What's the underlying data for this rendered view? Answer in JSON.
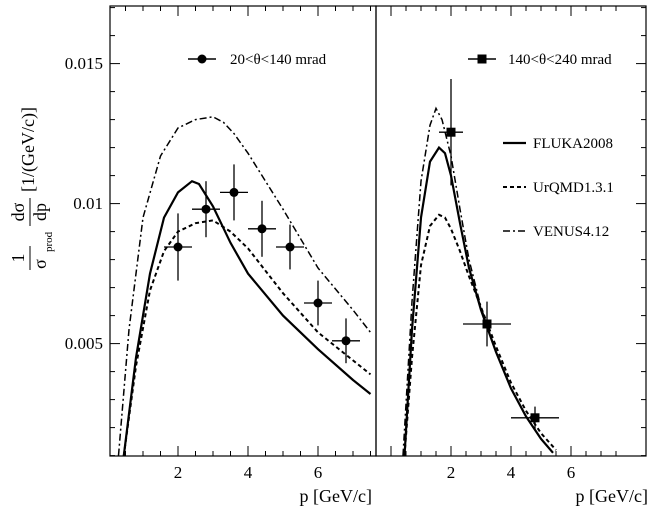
{
  "chart_data": [
    {
      "type": "line",
      "panel": "left",
      "ylabel_num": "1",
      "ylabel_den": "σ",
      "ylabel_den_sub": "prod",
      "ylabel_frac_num": "dσ",
      "ylabel_frac_den": "dp",
      "ylabel_unit": "[1/(GeV/c)]",
      "xlabel": "p [GeV/c]",
      "xlim": [
        0,
        7.5
      ],
      "ylim": [
        0.001,
        0.017
      ],
      "xticks": [
        "2",
        "4",
        "6"
      ],
      "yticks": [
        "0.005",
        "0.01",
        "0.015"
      ],
      "data_label": "20<θ<140 mrad",
      "data_marker": "circle",
      "data": [
        {
          "x": 2.0,
          "y": 0.00845,
          "ex": 0.4,
          "ey": 0.0012
        },
        {
          "x": 2.8,
          "y": 0.0098,
          "ex": 0.4,
          "ey": 0.001
        },
        {
          "x": 3.6,
          "y": 0.0104,
          "ex": 0.4,
          "ey": 0.001
        },
        {
          "x": 4.4,
          "y": 0.0091,
          "ex": 0.4,
          "ey": 0.001
        },
        {
          "x": 5.2,
          "y": 0.00845,
          "ex": 0.4,
          "ey": 0.0008
        },
        {
          "x": 6.0,
          "y": 0.00645,
          "ex": 0.4,
          "ey": 0.0008
        },
        {
          "x": 6.8,
          "y": 0.0051,
          "ex": 0.4,
          "ey": 0.0008
        }
      ],
      "series": [
        {
          "name": "FLUKA2008",
          "style": "solid",
          "x": [
            0.45,
            0.8,
            1.2,
            1.6,
            2.0,
            2.4,
            2.6,
            3.0,
            3.5,
            4.0,
            5.0,
            6.0,
            7.0,
            7.5
          ],
          "y": [
            0.001,
            0.0045,
            0.0075,
            0.0095,
            0.0104,
            0.0108,
            0.0107,
            0.0099,
            0.0086,
            0.0075,
            0.006,
            0.0048,
            0.0037,
            0.0032
          ]
        },
        {
          "name": "UrQMD1.3.1",
          "style": "dashed",
          "x": [
            0.45,
            0.8,
            1.2,
            1.6,
            2.0,
            2.5,
            3.0,
            3.5,
            4.0,
            5.0,
            6.0,
            7.0,
            7.5
          ],
          "y": [
            0.001,
            0.0042,
            0.0069,
            0.0083,
            0.009,
            0.0093,
            0.0094,
            0.009,
            0.0084,
            0.0068,
            0.0054,
            0.0044,
            0.0039
          ]
        },
        {
          "name": "VENUS4.12",
          "style": "dashdot",
          "x": [
            0.3,
            0.6,
            1.0,
            1.5,
            2.0,
            2.5,
            3.0,
            3.3,
            3.6,
            4.0,
            5.0,
            6.0,
            7.0,
            7.5
          ],
          "y": [
            0.001,
            0.0055,
            0.0095,
            0.0117,
            0.0127,
            0.013,
            0.0131,
            0.0129,
            0.0125,
            0.0118,
            0.0098,
            0.0077,
            0.0062,
            0.0054
          ]
        }
      ]
    },
    {
      "type": "line",
      "panel": "right",
      "xlabel": "p [GeV/c]",
      "xlim": [
        0,
        7.5
      ],
      "ylim": [
        0.001,
        0.017
      ],
      "xticks": [
        "2",
        "4",
        "6"
      ],
      "data_label": "140<θ<240 mrad",
      "data_marker": "square",
      "data": [
        {
          "x": 2.0,
          "y": 0.01255,
          "ex": 0.4,
          "ey": 0.0019
        },
        {
          "x": 3.2,
          "y": 0.0057,
          "ex": 0.8,
          "ey": 0.0008
        },
        {
          "x": 4.8,
          "y": 0.00235,
          "ex": 0.8,
          "ey": 0.0004
        }
      ],
      "series": [
        {
          "name": "FLUKA2008",
          "style": "solid",
          "x": [
            0.45,
            0.7,
            1.0,
            1.3,
            1.6,
            1.8,
            2.0,
            2.3,
            2.6,
            3.0,
            3.5,
            4.0,
            4.5,
            5.0,
            5.4
          ],
          "y": [
            0.001,
            0.0055,
            0.0095,
            0.0115,
            0.012,
            0.0118,
            0.011,
            0.0093,
            0.0077,
            0.0062,
            0.0047,
            0.0034,
            0.0024,
            0.0016,
            0.0011
          ]
        },
        {
          "name": "UrQMD1.3.1",
          "style": "dashed",
          "x": [
            0.45,
            0.7,
            1.0,
            1.3,
            1.6,
            1.8,
            2.0,
            2.3,
            2.6,
            3.0,
            3.5,
            4.0,
            4.5,
            5.0,
            5.5
          ],
          "y": [
            0.001,
            0.0045,
            0.0078,
            0.0092,
            0.0096,
            0.0095,
            0.0091,
            0.0083,
            0.0074,
            0.0063,
            0.0049,
            0.0036,
            0.0026,
            0.0018,
            0.0012
          ]
        },
        {
          "name": "VENUS4.12",
          "style": "dashdot",
          "x": [
            0.4,
            0.7,
            1.0,
            1.3,
            1.5,
            1.7,
            2.0,
            2.3,
            2.6,
            3.0,
            3.5,
            4.0,
            4.5,
            5.0,
            5.4
          ],
          "y": [
            0.001,
            0.0065,
            0.0108,
            0.0128,
            0.0134,
            0.013,
            0.0117,
            0.0098,
            0.008,
            0.0063,
            0.0047,
            0.0034,
            0.0024,
            0.0016,
            0.0011
          ]
        }
      ]
    }
  ],
  "colors": {
    "ink": "#000000",
    "background": "#ffffff"
  }
}
